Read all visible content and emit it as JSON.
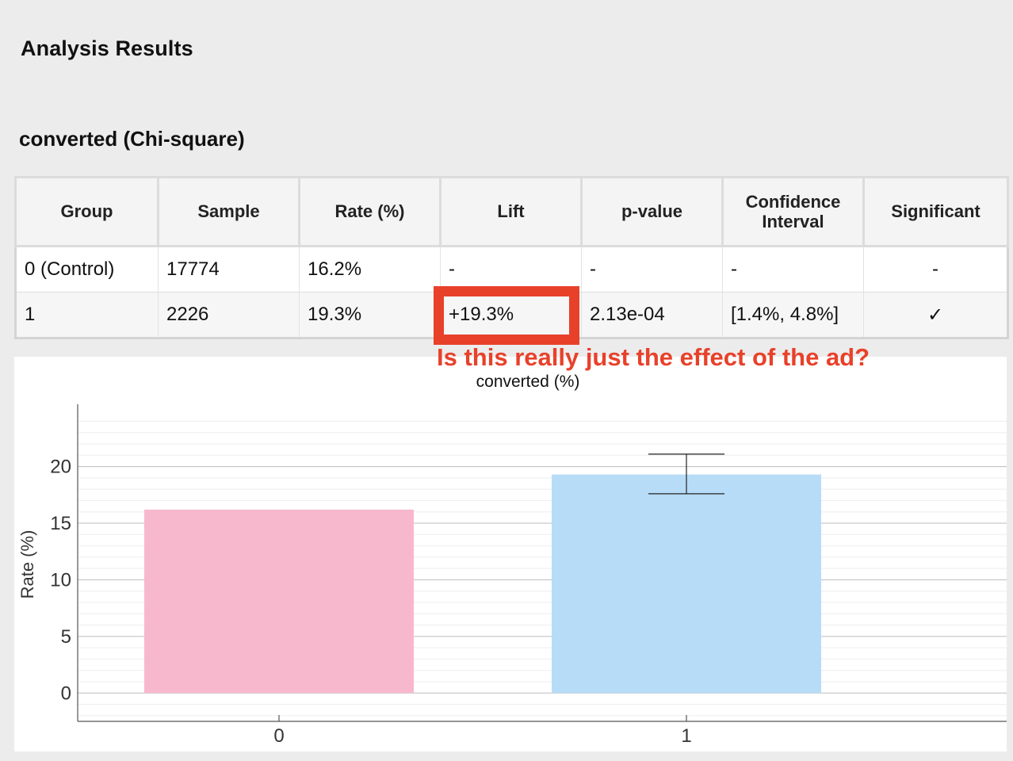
{
  "page": {
    "title": "Analysis Results",
    "section_title": "converted (Chi-square)"
  },
  "table": {
    "headers": [
      "Group",
      "Sample",
      "Rate (%)",
      "Lift",
      "p-value",
      "Confidence Interval",
      "Significant"
    ],
    "rows": [
      {
        "group": "0 (Control)",
        "sample": "17774",
        "rate": "16.2%",
        "lift": "-",
        "p_value": "-",
        "ci": "-",
        "significant": "-"
      },
      {
        "group": "1",
        "sample": "2226",
        "rate": "19.3%",
        "lift": "+19.3%",
        "p_value": "2.13e-04",
        "ci": "[1.4%, 4.8%]",
        "significant": "✓"
      }
    ]
  },
  "annotation": {
    "text": "Is this really just the effect of the ad?",
    "color": "#e8412a"
  },
  "chart_data": {
    "type": "bar",
    "title": "converted (%)",
    "xlabel": "",
    "ylabel": "Rate (%)",
    "categories": [
      "0",
      "1"
    ],
    "values": [
      16.2,
      19.3
    ],
    "error_bars": [
      null,
      {
        "low": 17.6,
        "high": 21.1
      }
    ],
    "colors": [
      "#f7b8cd",
      "#b7dcf7"
    ],
    "ylim": [
      -2.5,
      25.5
    ],
    "yticks": [
      0,
      5,
      10,
      15,
      20
    ],
    "grid": true
  }
}
